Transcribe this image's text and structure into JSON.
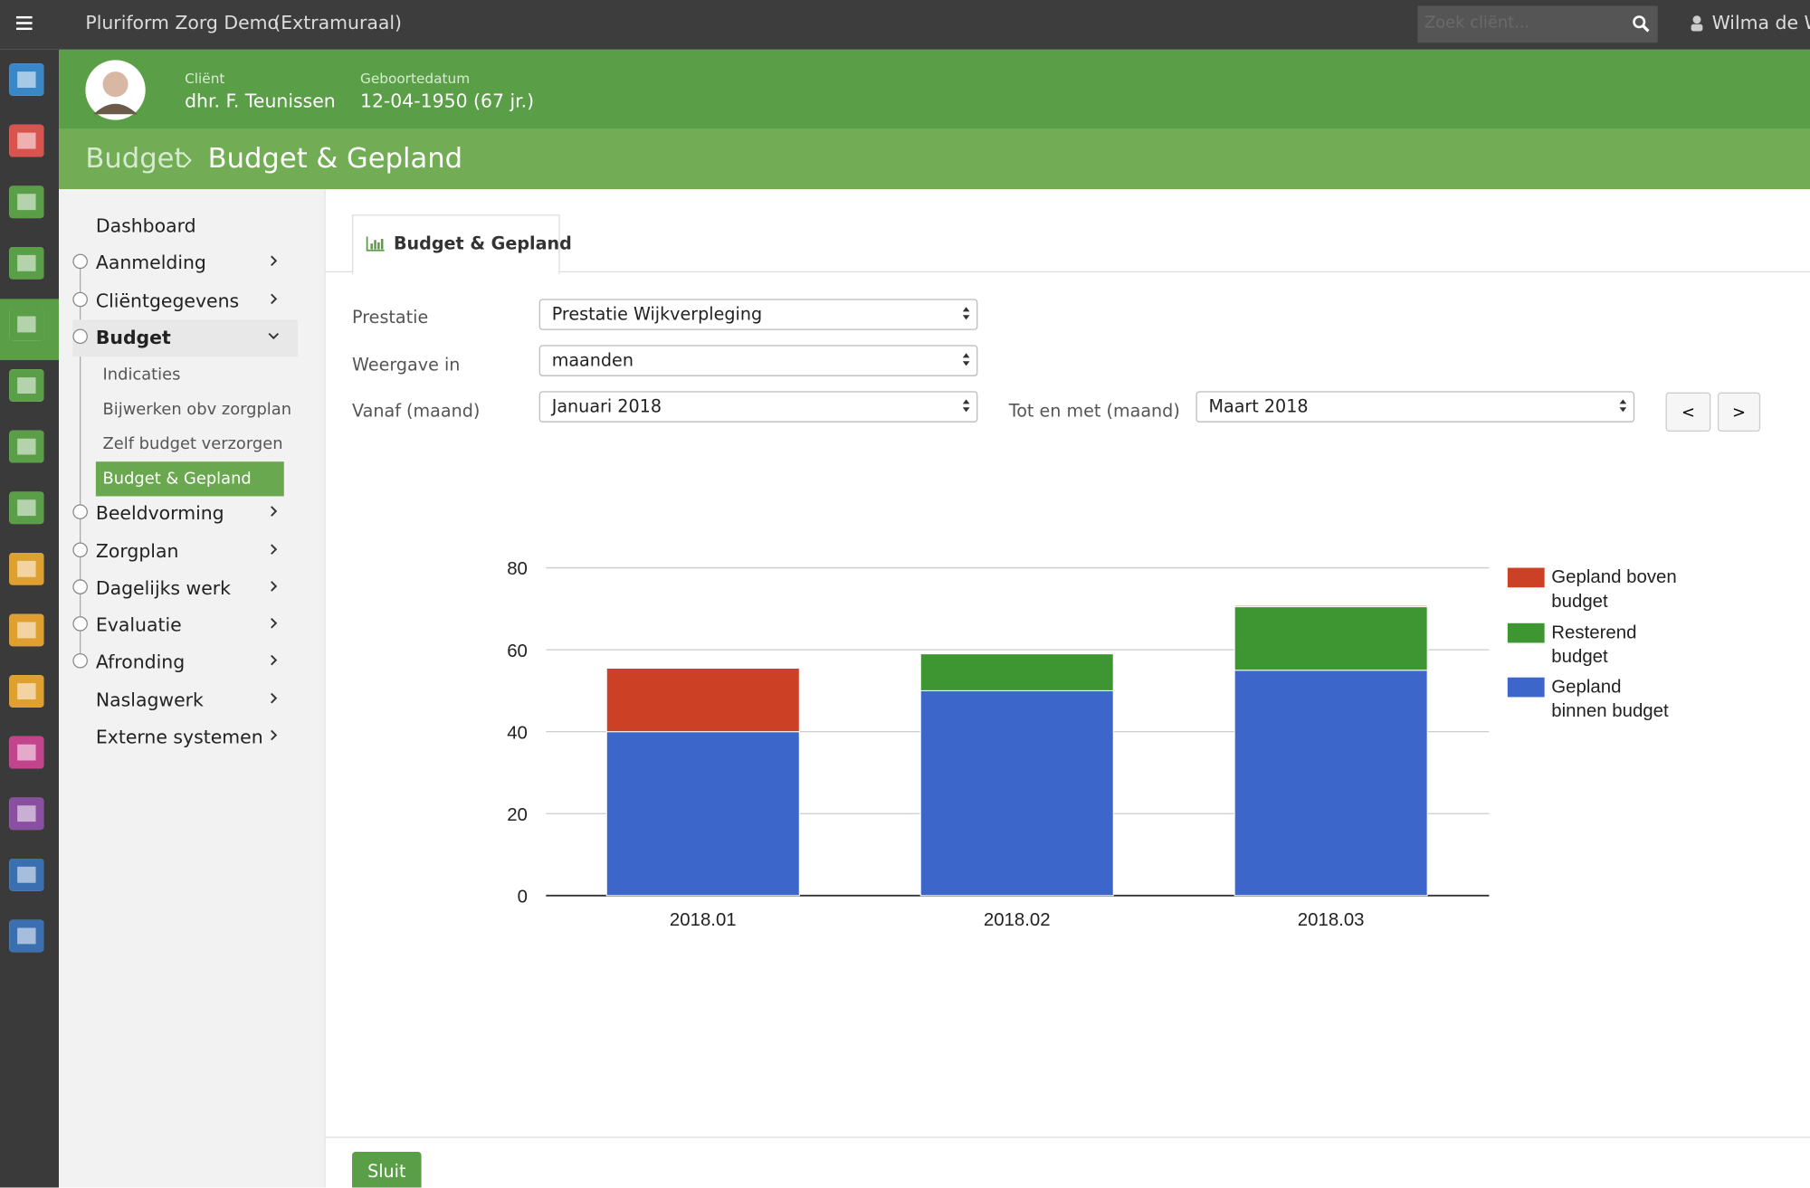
{
  "app": {
    "brand": "Pluriform Zorg Demo",
    "brand_sub": "(Extramuraal)",
    "search_placeholder": "Zoek cliënt...",
    "user": "Wilma de Wij"
  },
  "client": {
    "label": "Cliënt",
    "name": "dhr. F. Teunissen",
    "dob_label": "Geboortedatum",
    "dob": "12-04-1950 (67 jr.)"
  },
  "breadcrumb": [
    "Budget",
    "Budget & Gepland"
  ],
  "menu": [
    {
      "label": "Dashboard"
    },
    {
      "label": "Aanmelding"
    },
    {
      "label": "Cliëntgegevens"
    },
    {
      "label": "Budget",
      "children": [
        "Indicaties",
        "Bijwerken obv zorgplan",
        "Zelf budget verzorgen",
        "Budget & Gepland"
      ]
    },
    {
      "label": "Beeldvorming"
    },
    {
      "label": "Zorgplan"
    },
    {
      "label": "Dagelijks werk"
    },
    {
      "label": "Evaluatie"
    },
    {
      "label": "Afronding"
    },
    {
      "label": "Naslagwerk"
    },
    {
      "label": "Externe systemen"
    }
  ],
  "tab": "Budget & Gepland",
  "form": {
    "prestatie_label": "Prestatie",
    "prestatie": "Prestatie Wijkverpleging",
    "weergave_label": "Weergave in",
    "weergave": "maanden",
    "vanaf_label": "Vanaf (maand)",
    "vanaf": "Januari 2018",
    "tot_label": "Tot en met (maand)",
    "tot": "Maart 2018",
    "prev": "<",
    "next": ">"
  },
  "close_button": "Sluit",
  "chart_data": {
    "type": "stacked-bar",
    "categories": [
      "2018.01",
      "2018.02",
      "2018.03"
    ],
    "series": [
      {
        "name": "Gepland boven budget",
        "color": "#cc4125",
        "values": [
          15.5,
          0,
          0.3
        ]
      },
      {
        "name": "Resterend budget",
        "color": "#3d9632",
        "values": [
          0,
          9,
          15.5
        ]
      },
      {
        "name": "Gepland binnen budget",
        "color": "#3c66c9",
        "values": [
          40,
          50,
          55
        ]
      }
    ],
    "ylim": [
      0,
      80
    ],
    "yticks": [
      0,
      20,
      40,
      60,
      80
    ],
    "grid": true,
    "legend": "right"
  }
}
